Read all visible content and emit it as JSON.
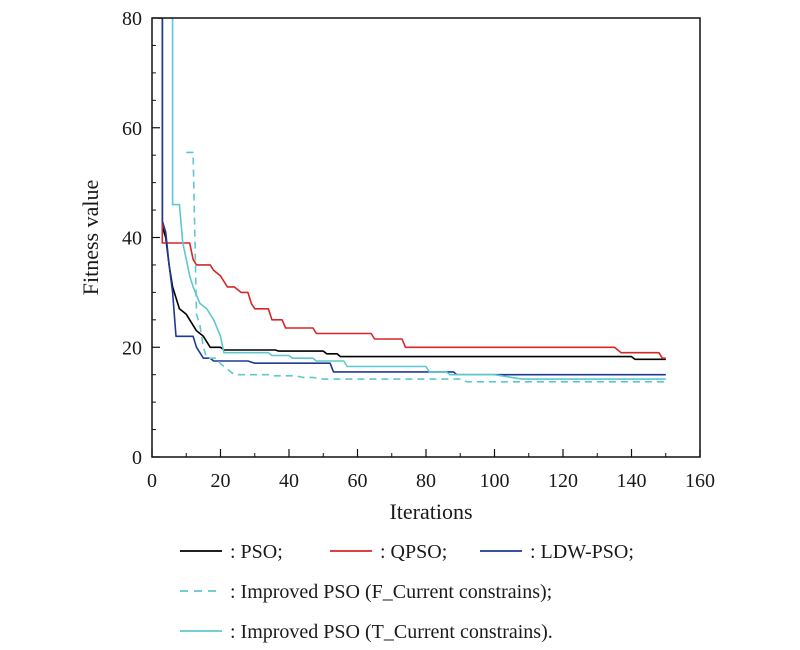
{
  "chart_data": {
    "type": "line",
    "title": "",
    "xlabel": "Iterations",
    "ylabel": "Fitness value",
    "xlim": [
      0,
      160
    ],
    "ylim": [
      0,
      80
    ],
    "xticks": [
      0,
      20,
      40,
      60,
      80,
      100,
      120,
      140,
      160
    ],
    "yticks": [
      0,
      20,
      40,
      60,
      80
    ],
    "grid": false,
    "legend_position": "bottom",
    "series": [
      {
        "name": ": PSO;",
        "color": "#000000",
        "dash": false,
        "points": [
          [
            2,
            80
          ],
          [
            3,
            80
          ],
          [
            3,
            42
          ],
          [
            4,
            40
          ],
          [
            5,
            35
          ],
          [
            6,
            31
          ],
          [
            7,
            29
          ],
          [
            8,
            27
          ],
          [
            10,
            26
          ],
          [
            12,
            24
          ],
          [
            13,
            23
          ],
          [
            15,
            22
          ],
          [
            16,
            21
          ],
          [
            17,
            20
          ],
          [
            20,
            20
          ],
          [
            21,
            19.5
          ],
          [
            36,
            19.5
          ],
          [
            37,
            19.3
          ],
          [
            50,
            19.3
          ],
          [
            51,
            18.8
          ],
          [
            54,
            18.8
          ],
          [
            55,
            18.3
          ],
          [
            140,
            18.3
          ],
          [
            141,
            17.8
          ],
          [
            150,
            17.8
          ]
        ]
      },
      {
        "name": ": QPSO;",
        "color": "#d62728",
        "dash": false,
        "points": [
          [
            2,
            80
          ],
          [
            3,
            80
          ],
          [
            3,
            39
          ],
          [
            8,
            39
          ],
          [
            9,
            39
          ],
          [
            11,
            39
          ],
          [
            12,
            36
          ],
          [
            13,
            35
          ],
          [
            17,
            35
          ],
          [
            18,
            34
          ],
          [
            20,
            33
          ],
          [
            22,
            31
          ],
          [
            24,
            31
          ],
          [
            26,
            30
          ],
          [
            28,
            30
          ],
          [
            29,
            28
          ],
          [
            30,
            27
          ],
          [
            34,
            27
          ],
          [
            35,
            25
          ],
          [
            38,
            25
          ],
          [
            39,
            23.5
          ],
          [
            47,
            23.5
          ],
          [
            48,
            22.5
          ],
          [
            64,
            22.5
          ],
          [
            65,
            21.5
          ],
          [
            73,
            21.5
          ],
          [
            74,
            20
          ],
          [
            135,
            20
          ],
          [
            137,
            19
          ],
          [
            148,
            19
          ],
          [
            149,
            18
          ],
          [
            150,
            18
          ]
        ]
      },
      {
        "name": ": LDW-PSO;",
        "color": "#1f3a93",
        "dash": false,
        "points": [
          [
            2,
            80
          ],
          [
            3,
            80
          ],
          [
            3,
            43
          ],
          [
            4,
            41
          ],
          [
            5,
            35
          ],
          [
            6,
            30
          ],
          [
            7,
            22
          ],
          [
            12,
            22
          ],
          [
            13,
            20
          ],
          [
            14,
            19
          ],
          [
            15,
            18
          ],
          [
            17,
            18
          ],
          [
            18,
            17.5
          ],
          [
            28,
            17.5
          ],
          [
            29,
            17.3
          ],
          [
            30,
            17.1
          ],
          [
            52,
            17.1
          ],
          [
            53,
            15.5
          ],
          [
            88,
            15.5
          ],
          [
            89,
            15
          ],
          [
            150,
            15
          ]
        ]
      },
      {
        "name": ": Improved PSO (F_Current constrains);",
        "color": "#5fc8cc",
        "dash": true,
        "points": [
          [
            10,
            55.5
          ],
          [
            12,
            55.5
          ],
          [
            13,
            26
          ],
          [
            14,
            24
          ],
          [
            15,
            20
          ],
          [
            16,
            18
          ],
          [
            19,
            18
          ],
          [
            20,
            17
          ],
          [
            22,
            16
          ],
          [
            23,
            15.5
          ],
          [
            24,
            15
          ],
          [
            34,
            15
          ],
          [
            35,
            14.8
          ],
          [
            42,
            14.8
          ],
          [
            44,
            14.5
          ],
          [
            47,
            14.5
          ],
          [
            50,
            14.2
          ],
          [
            90,
            14.2
          ],
          [
            92,
            13.7
          ],
          [
            150,
            13.7
          ]
        ]
      },
      {
        "name": ": Improved PSO (T_Current constrains).",
        "color": "#5fc8cc",
        "dash": false,
        "points": [
          [
            5,
            80
          ],
          [
            6,
            80
          ],
          [
            6,
            46
          ],
          [
            8,
            46
          ],
          [
            9,
            39
          ],
          [
            10,
            36
          ],
          [
            11,
            33
          ],
          [
            12,
            31
          ],
          [
            14,
            28
          ],
          [
            16,
            27
          ],
          [
            18,
            25
          ],
          [
            20,
            22
          ],
          [
            21,
            19
          ],
          [
            34,
            19
          ],
          [
            35,
            18.5
          ],
          [
            40,
            18.5
          ],
          [
            41,
            18
          ],
          [
            47,
            18
          ],
          [
            48,
            17.5
          ],
          [
            56,
            17.5
          ],
          [
            57,
            16.5
          ],
          [
            80,
            16.5
          ],
          [
            81,
            15.5
          ],
          [
            86,
            15.5
          ],
          [
            87,
            15
          ],
          [
            100,
            15
          ],
          [
            105,
            14.5
          ],
          [
            108,
            14.2
          ],
          [
            150,
            14.2
          ]
        ]
      }
    ]
  }
}
